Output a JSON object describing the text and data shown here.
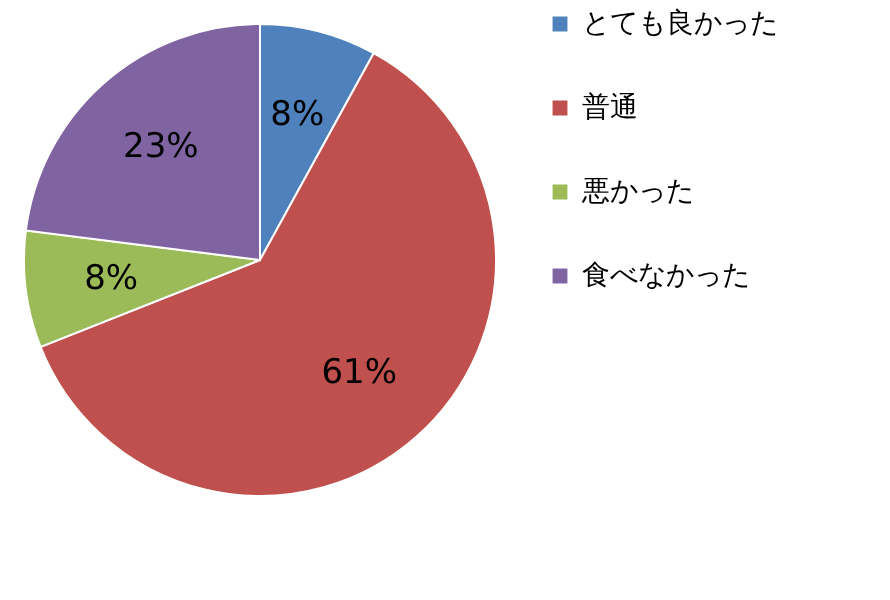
{
  "chart_data": {
    "type": "pie",
    "categories": [
      "とても良かった",
      "普通",
      "悪かった",
      "食べなかった"
    ],
    "values": [
      8,
      61,
      8,
      23
    ],
    "colors": [
      "#4f81bd",
      "#c0504d",
      "#9bbb59",
      "#8064a2"
    ],
    "value_labels": [
      "8%",
      "61%",
      "8%",
      "23%"
    ],
    "legend": "right"
  }
}
